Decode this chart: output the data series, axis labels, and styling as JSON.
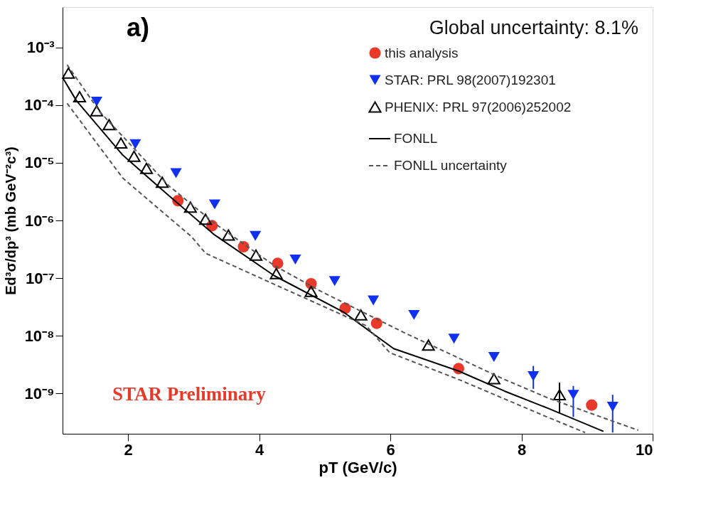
{
  "chart_data": {
    "type": "scatter",
    "xlabel": "pT (GeV/c)",
    "ylabel": "Ed³σ/dp³ (mb GeV⁻²c³)",
    "annotations": [
      "a)",
      "Global uncertainty: 8.1%",
      "STAR Preliminary"
    ],
    "xlim": [
      1,
      10
    ],
    "xticks": [
      2,
      4,
      6,
      8,
      10
    ],
    "ylim": [
      2e-10,
      0.005
    ],
    "log": true,
    "yticks": [
      {
        "value": 1e-09,
        "label": "10⁻⁹"
      },
      {
        "value": 1e-08,
        "label": "10⁻⁸"
      },
      {
        "value": 1e-07,
        "label": "10⁻⁷"
      },
      {
        "value": 1e-06,
        "label": "10⁻⁶"
      },
      {
        "value": 1e-05,
        "label": "10⁻⁵"
      },
      {
        "value": 0.0001,
        "label": "10⁻⁴"
      },
      {
        "value": 0.001,
        "label": "10⁻³"
      }
    ],
    "grid": false,
    "legend": "top right",
    "series": [
      {
        "name": "this analysis",
        "type": "scatter",
        "marker": "circle",
        "color": "#e8392a",
        "x": [
          2.76,
          3.28,
          3.76,
          4.28,
          4.79,
          5.31,
          5.79,
          7.04,
          9.07
        ],
        "values": [
          2.2e-06,
          8.1e-07,
          3.5e-07,
          1.8e-07,
          8e-08,
          3e-08,
          1.65e-08,
          2.7e-09,
          6.3e-10
        ]
      },
      {
        "name": "STAR: PRL 98(2007)192301",
        "type": "scatter",
        "marker": "triangle-down",
        "color": "#1030f0",
        "x": [
          1.52,
          2.11,
          2.73,
          3.32,
          3.94,
          4.55,
          5.15,
          5.74,
          6.36,
          6.97,
          7.58,
          8.18,
          8.79,
          9.39
        ],
        "values": [
          0.000115,
          2.1e-05,
          6.6e-06,
          1.9e-06,
          5.4e-07,
          2.1e-07,
          8.9e-08,
          4.1e-08,
          2.3e-08,
          8.9e-09,
          4.3e-09,
          2e-09,
          9.5e-10,
          5.9e-10
        ],
        "errors": [
          null,
          null,
          null,
          null,
          null,
          null,
          null,
          null,
          null,
          null,
          null,
          [
            1.2e-09,
            3e-09
          ],
          [
            3.9e-10,
            1.35e-09
          ],
          [
            2.1e-10,
            9.5e-10
          ]
        ]
      },
      {
        "name": "PHENIX: PRL 97(2006)252002",
        "type": "scatter",
        "marker": "triangle",
        "color": "#000000",
        "x": [
          1.09,
          1.26,
          1.52,
          1.71,
          1.89,
          2.09,
          2.28,
          2.52,
          2.95,
          3.18,
          3.53,
          3.95,
          4.26,
          4.79,
          5.55,
          6.58,
          7.58,
          8.58
        ],
        "values": [
          0.00036,
          0.00014,
          8e-05,
          4.6e-05,
          2.2e-05,
          1.3e-05,
          8e-06,
          4.6e-06,
          1.7e-06,
          1.05e-06,
          5.6e-07,
          2.5e-07,
          1.2e-07,
          5.9e-08,
          2.3e-08,
          6.9e-09,
          1.8e-09,
          9.5e-10
        ],
        "errors": [
          null,
          null,
          null,
          null,
          null,
          null,
          null,
          null,
          null,
          null,
          null,
          null,
          null,
          null,
          null,
          null,
          null,
          [
            4.6e-10,
            1.55e-09
          ]
        ]
      },
      {
        "name": "FONLL",
        "type": "line",
        "line_style": "solid",
        "color": "#000000",
        "x": [
          1.0,
          1.21,
          1.92,
          2.62,
          3.32,
          4.23,
          5.28,
          6.05,
          7.04,
          7.74,
          8.41,
          9.25
        ],
        "values": [
          0.0003,
          0.00012,
          1.35e-05,
          2.7e-06,
          5.6e-07,
          1.1e-07,
          2.6e-08,
          6e-09,
          2.45e-09,
          1.1e-09,
          5.5e-10,
          2.2e-10
        ]
      },
      {
        "name": "FONLL uncertainty",
        "type": "line",
        "line_style": "dashed",
        "color": "#555555",
        "x": [
          1.07,
          1.57,
          2.62,
          3.32,
          4.23,
          4.94,
          6.2,
          7.74,
          8.41,
          9.78
        ],
        "values": [
          0.0005,
          7.6e-05,
          4e-06,
          8.9e-07,
          1.65e-07,
          5.9e-08,
          1.15e-08,
          1.75e-09,
          8.3e-10,
          2.3e-10
        ]
      },
      {
        "type": "line",
        "line_style": "dashed",
        "color": "#555555",
        "x": [
          1.07,
          1.92,
          2.97,
          3.18,
          4.23,
          5.63,
          5.99,
          7.04,
          8.37,
          8.97
        ],
        "values": [
          0.000107,
          5.4e-06,
          5.2e-07,
          2.7e-07,
          7.8e-08,
          1.5e-08,
          5.1e-09,
          1.75e-09,
          4e-10,
          2.1e-10
        ]
      }
    ]
  }
}
